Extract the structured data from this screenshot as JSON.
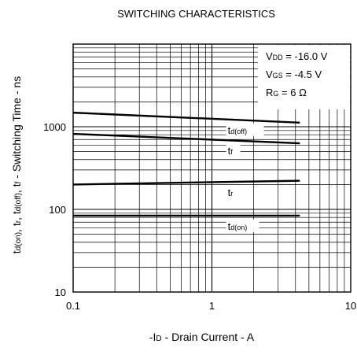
{
  "chart_data": {
    "type": "line",
    "title": "SWITCHING CHARACTERISTICS",
    "xlabel": {
      "prefix": "-I",
      "sub": "D",
      "suffix": " - Drain Current - A"
    },
    "ylabel": [
      {
        "t": "t"
      },
      {
        "t": "d(on)",
        "sub": true
      },
      {
        "t": ", t"
      },
      {
        "t": "r",
        "sub": true
      },
      {
        "t": ", t"
      },
      {
        "t": "d(off)",
        "sub": true
      },
      {
        "t": ", t"
      },
      {
        "t": "f",
        "sub": true
      },
      {
        "t": " - Switching Time - ns"
      }
    ],
    "x_scale": "log",
    "y_scale": "log",
    "xlim": [
      0.1,
      10
    ],
    "ylim": [
      10,
      10000
    ],
    "x_ticks": [
      {
        "v": 0.1,
        "label": "0.1"
      },
      {
        "v": 1,
        "label": "1"
      },
      {
        "v": 10,
        "label": "10"
      }
    ],
    "y_ticks": [
      {
        "v": 10,
        "label": "10"
      },
      {
        "v": 100,
        "label": "100"
      },
      {
        "v": 1000,
        "label": "1000"
      }
    ],
    "grid": true,
    "conditions": [
      {
        "main": "V",
        "sub": "DD",
        "rest": " = -16.0 V"
      },
      {
        "main": "V",
        "sub": "GS",
        "rest": " = -4.5 V"
      },
      {
        "main": "R",
        "sub": "G",
        "rest": " = 6 Ω"
      }
    ],
    "series": [
      {
        "name": "td(off)",
        "label_main": "t",
        "label_sub": "d(off)",
        "label_at": 1.3,
        "x": [
          0.1,
          4.3
        ],
        "y": [
          1480,
          1120
        ]
      },
      {
        "name": "tf",
        "label_main": "t",
        "label_sub": "f",
        "label_at": 1.3,
        "x": [
          0.1,
          4.3
        ],
        "y": [
          820,
          630
        ]
      },
      {
        "name": "tr",
        "label_main": "t",
        "label_sub": "r",
        "label_at": 1.3,
        "x": [
          0.1,
          4.3
        ],
        "y": [
          200,
          222
        ]
      },
      {
        "name": "td(on)",
        "label_main": "t",
        "label_sub": "d(on)",
        "label_at": 1.3,
        "x": [
          0.1,
          4.3
        ],
        "y": [
          84,
          84
        ]
      }
    ]
  }
}
